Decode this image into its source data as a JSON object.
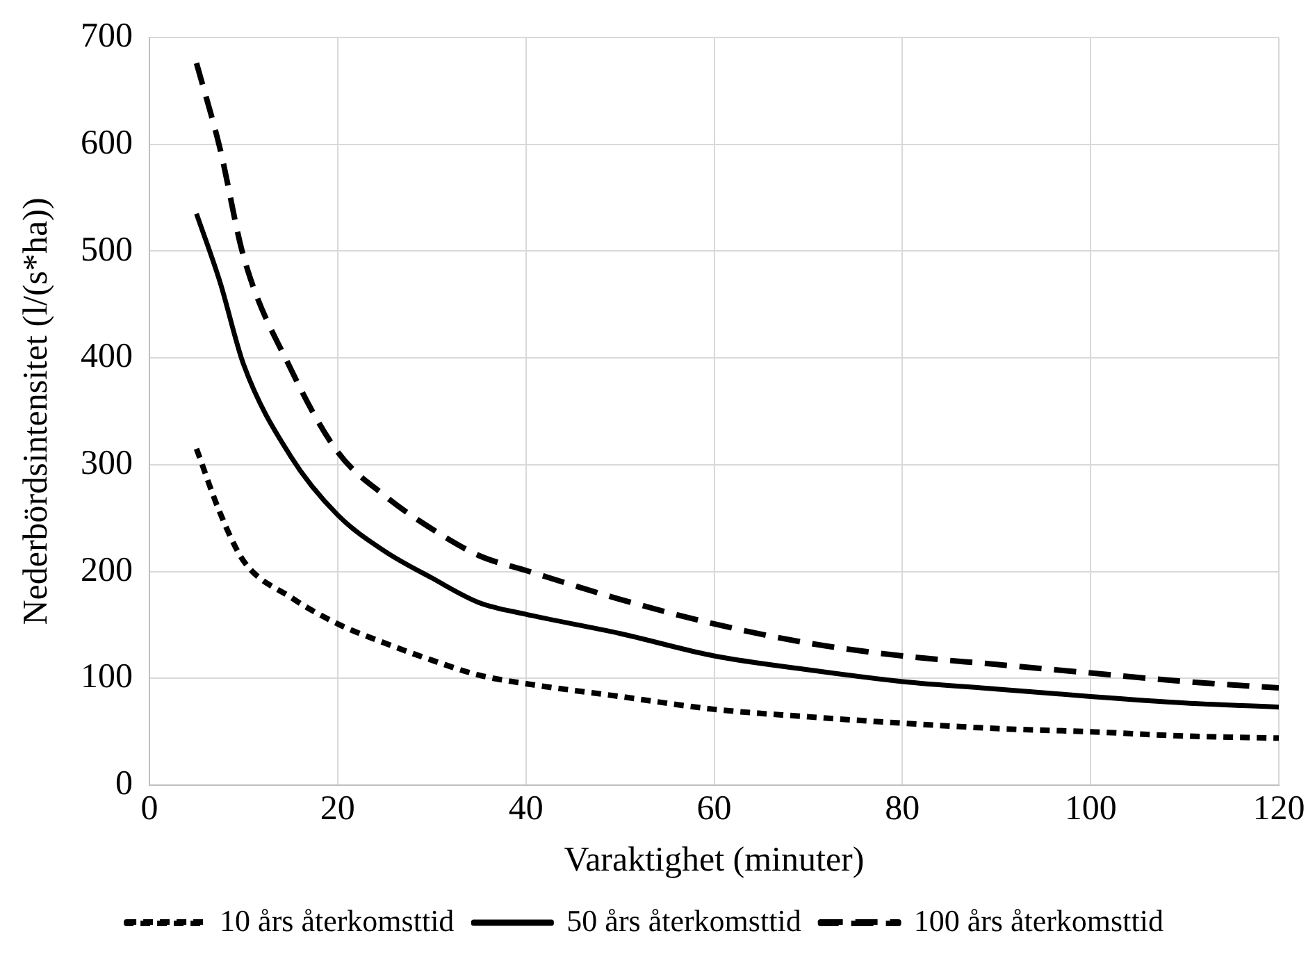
{
  "chart_data": {
    "type": "line",
    "xlabel": "Varaktighet (minuter)",
    "ylabel": "Nederbördsintensitet (l/(s*ha))",
    "x": [
      5,
      7.5,
      10,
      15,
      20,
      25,
      30,
      35,
      40,
      50,
      60,
      70,
      80,
      90,
      100,
      110,
      120
    ],
    "series": [
      {
        "name": "10 års återkomsttid",
        "color": "#000000",
        "line_style": "dotted",
        "values": [
          315,
          255,
          210,
          176,
          151,
          133,
          117,
          103,
          95,
          83,
          71,
          64,
          58,
          53,
          50,
          46,
          44
        ]
      },
      {
        "name": "50 års återkomsttid",
        "color": "#000000",
        "line_style": "solid",
        "values": [
          535,
          471,
          394,
          308,
          253,
          219,
          194,
          171,
          160,
          142,
          121,
          108,
          97,
          90,
          83,
          77,
          73
        ]
      },
      {
        "name": "100 års återkomsttid",
        "color": "#000000",
        "line_style": "dashed",
        "values": [
          676,
          596,
          495,
          390,
          312,
          271,
          240,
          215,
          201,
          174,
          151,
          133,
          121,
          113,
          105,
          97,
          91
        ]
      }
    ],
    "xlim": [
      0,
      120
    ],
    "xticks": [
      0,
      20,
      40,
      60,
      80,
      100,
      120
    ],
    "ylim": [
      0,
      700
    ],
    "yticks": [
      0,
      100,
      200,
      300,
      400,
      500,
      600,
      700
    ],
    "grid": true,
    "legend": "bottom",
    "marker": "none"
  }
}
